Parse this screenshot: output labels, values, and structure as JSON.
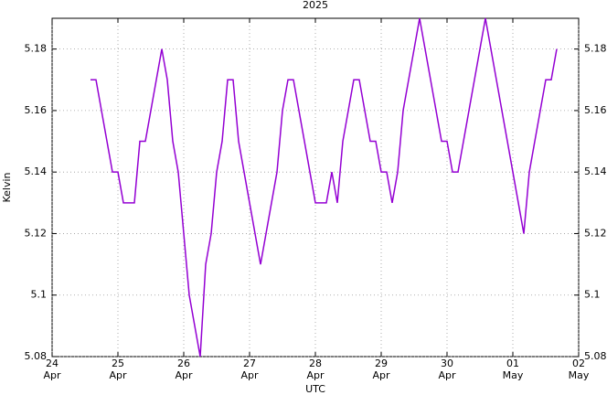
{
  "chart_data": {
    "type": "line",
    "title": "2025",
    "x_label": "UTC",
    "y_label": "Kelvin",
    "x": [
      "2025-04-24T14:00Z",
      "2025-04-24T16:00Z",
      "2025-04-24T18:00Z",
      "2025-04-24T20:00Z",
      "2025-04-24T22:00Z",
      "2025-04-25T00:00Z",
      "2025-04-25T02:00Z",
      "2025-04-25T04:00Z",
      "2025-04-25T06:00Z",
      "2025-04-25T08:00Z",
      "2025-04-25T10:00Z",
      "2025-04-25T12:00Z",
      "2025-04-25T14:00Z",
      "2025-04-25T16:00Z",
      "2025-04-25T18:00Z",
      "2025-04-25T20:00Z",
      "2025-04-25T22:00Z",
      "2025-04-26T00:00Z",
      "2025-04-26T02:00Z",
      "2025-04-26T04:00Z",
      "2025-04-26T06:00Z",
      "2025-04-26T08:00Z",
      "2025-04-26T10:00Z",
      "2025-04-26T12:00Z",
      "2025-04-26T14:00Z",
      "2025-04-26T16:00Z",
      "2025-04-26T18:00Z",
      "2025-04-26T20:00Z",
      "2025-04-26T22:00Z",
      "2025-04-27T00:00Z",
      "2025-04-27T02:00Z",
      "2025-04-27T04:00Z",
      "2025-04-27T06:00Z",
      "2025-04-27T08:00Z",
      "2025-04-27T10:00Z",
      "2025-04-27T12:00Z",
      "2025-04-27T14:00Z",
      "2025-04-27T16:00Z",
      "2025-04-27T18:00Z",
      "2025-04-27T20:00Z",
      "2025-04-27T22:00Z",
      "2025-04-28T00:00Z",
      "2025-04-28T02:00Z",
      "2025-04-28T04:00Z",
      "2025-04-28T06:00Z",
      "2025-04-28T08:00Z",
      "2025-04-28T10:00Z",
      "2025-04-28T12:00Z",
      "2025-04-28T14:00Z",
      "2025-04-28T16:00Z",
      "2025-04-28T18:00Z",
      "2025-04-28T20:00Z",
      "2025-04-28T22:00Z",
      "2025-04-29T00:00Z",
      "2025-04-29T02:00Z",
      "2025-04-29T04:00Z",
      "2025-04-29T06:00Z",
      "2025-04-29T08:00Z",
      "2025-04-29T10:00Z",
      "2025-04-29T12:00Z",
      "2025-04-29T14:00Z",
      "2025-04-29T16:00Z",
      "2025-04-29T18:00Z",
      "2025-04-29T20:00Z",
      "2025-04-29T22:00Z",
      "2025-04-30T00:00Z",
      "2025-04-30T02:00Z",
      "2025-04-30T04:00Z",
      "2025-04-30T06:00Z",
      "2025-04-30T08:00Z",
      "2025-04-30T10:00Z",
      "2025-04-30T12:00Z",
      "2025-04-30T14:00Z",
      "2025-04-30T16:00Z",
      "2025-04-30T18:00Z",
      "2025-04-30T20:00Z",
      "2025-04-30T22:00Z",
      "2025-05-01T00:00Z",
      "2025-05-01T02:00Z",
      "2025-05-01T04:00Z",
      "2025-05-01T06:00Z",
      "2025-05-01T08:00Z",
      "2025-05-01T10:00Z",
      "2025-05-01T12:00Z",
      "2025-05-01T14:00Z",
      "2025-05-01T16:00Z"
    ],
    "series": [
      {
        "color": "#9400d3",
        "values": [
          5.17,
          5.17,
          5.16,
          5.15,
          5.14,
          5.14,
          5.13,
          5.13,
          5.13,
          5.15,
          5.15,
          5.16,
          5.17,
          5.18,
          5.17,
          5.15,
          5.14,
          5.12,
          5.1,
          5.09,
          5.08,
          5.11,
          5.12,
          5.14,
          5.15,
          5.17,
          5.17,
          5.15,
          5.14,
          5.13,
          5.12,
          5.11,
          5.12,
          5.13,
          5.14,
          5.16,
          5.17,
          5.17,
          5.16,
          5.15,
          5.14,
          5.13,
          5.13,
          5.13,
          5.14,
          5.13,
          5.15,
          5.16,
          5.17,
          5.17,
          5.16,
          5.15,
          5.15,
          5.14,
          5.14,
          5.13,
          5.14,
          5.16,
          5.17,
          5.18,
          5.19,
          5.18,
          5.17,
          5.16,
          5.15,
          5.15,
          5.14,
          5.14,
          5.15,
          5.16,
          5.17,
          5.18,
          5.19,
          5.18,
          5.17,
          5.16,
          5.15,
          5.14,
          5.13,
          5.12,
          5.14,
          5.15,
          5.16,
          5.17,
          5.17,
          5.18
        ]
      }
    ],
    "xlim": [
      "2025-04-24T00:00Z",
      "2025-05-02T00:00Z"
    ],
    "xticks": [
      {
        "value": "2025-04-24T00:00Z",
        "label": [
          "24",
          "Apr"
        ]
      },
      {
        "value": "2025-04-25T00:00Z",
        "label": [
          "25",
          "Apr"
        ]
      },
      {
        "value": "2025-04-26T00:00Z",
        "label": [
          "26",
          "Apr"
        ]
      },
      {
        "value": "2025-04-27T00:00Z",
        "label": [
          "27",
          "Apr"
        ]
      },
      {
        "value": "2025-04-28T00:00Z",
        "label": [
          "28",
          "Apr"
        ]
      },
      {
        "value": "2025-04-29T00:00Z",
        "label": [
          "29",
          "Apr"
        ]
      },
      {
        "value": "2025-04-30T00:00Z",
        "label": [
          "30",
          "Apr"
        ]
      },
      {
        "value": "2025-05-01T00:00Z",
        "label": [
          "01",
          "May"
        ]
      },
      {
        "value": "2025-05-02T00:00Z",
        "label": [
          "02",
          "May"
        ]
      }
    ],
    "ylim": [
      5.08,
      5.19
    ],
    "yticks": [
      5.08,
      5.1,
      5.12,
      5.14,
      5.16,
      5.18
    ],
    "grid": true
  }
}
